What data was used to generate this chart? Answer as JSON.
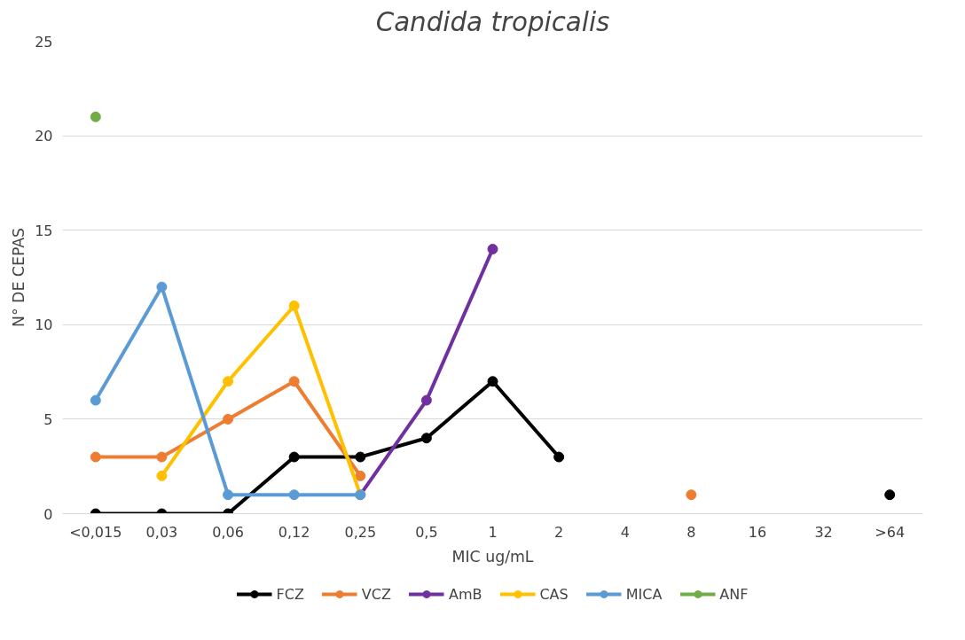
{
  "chart_data": {
    "type": "line",
    "title": "Candida tropicalis",
    "xlabel": "MIC ug/mL",
    "ylabel": "N° DE CEPAS",
    "categories": [
      "<0,015",
      "0,03",
      "0,06",
      "0,12",
      "0,25",
      "0,5",
      "1",
      "2",
      "4",
      "8",
      "16",
      "32",
      ">64"
    ],
    "ylim": [
      0,
      25
    ],
    "yticks": [
      0,
      5,
      10,
      15,
      20,
      25
    ],
    "grid": "y",
    "legend": "bottom",
    "marker": "circle",
    "line_style": "solid",
    "series": [
      {
        "name": "FCZ",
        "color": "#000000",
        "values": [
          0,
          0,
          0,
          3,
          3,
          4,
          7,
          3,
          null,
          null,
          null,
          null,
          1
        ]
      },
      {
        "name": "VCZ",
        "color": "#ed7d31",
        "values": [
          3,
          3,
          5,
          7,
          2,
          null,
          null,
          null,
          null,
          1,
          null,
          null,
          null
        ]
      },
      {
        "name": "AmB",
        "color": "#7030a0",
        "values": [
          null,
          null,
          null,
          null,
          1,
          6,
          14,
          null,
          null,
          null,
          null,
          null,
          null
        ]
      },
      {
        "name": "CAS",
        "color": "#ffc000",
        "values": [
          null,
          2,
          7,
          11,
          1,
          null,
          null,
          null,
          null,
          null,
          null,
          null,
          null
        ]
      },
      {
        "name": "MICA",
        "color": "#5b9bd5",
        "values": [
          6,
          12,
          1,
          1,
          1,
          null,
          null,
          null,
          null,
          null,
          null,
          null,
          null
        ]
      },
      {
        "name": "ANF",
        "color": "#70ad47",
        "values": [
          21,
          null,
          null,
          null,
          null,
          null,
          null,
          null,
          null,
          null,
          null,
          null,
          null
        ]
      }
    ]
  }
}
